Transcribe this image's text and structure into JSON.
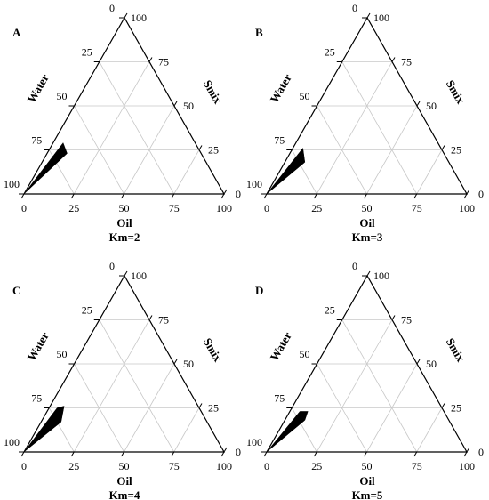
{
  "chart_data": [
    {
      "type": "ternary",
      "annotation": "A",
      "title": "Km=2",
      "axes": {
        "bottom": "Oil",
        "left": "Water",
        "right": "Smix"
      },
      "lim": [
        0,
        100
      ],
      "ticks": [
        0,
        25,
        50,
        75,
        100
      ],
      "grid": true,
      "color": "#000000",
      "region": {
        "oil": [
          0,
          5,
          10
        ],
        "smix": [
          0,
          29,
          23
        ]
      }
    },
    {
      "type": "ternary",
      "annotation": "B",
      "title": "Km=3",
      "axes": {
        "bottom": "Oil",
        "left": "Water",
        "right": "Smix"
      },
      "lim": [
        0,
        100
      ],
      "ticks": [
        0,
        25,
        50,
        75,
        100
      ],
      "grid": true,
      "color": "#000000",
      "region": {
        "oil": [
          0,
          5,
          10
        ],
        "smix": [
          0,
          26,
          18
        ]
      }
    },
    {
      "type": "ternary",
      "annotation": "C",
      "title": "Km=4",
      "axes": {
        "bottom": "Oil",
        "left": "Water",
        "right": "Smix"
      },
      "lim": [
        0,
        100
      ],
      "ticks": [
        0,
        25,
        50,
        75,
        100
      ],
      "grid": true,
      "color": "#000000",
      "region": {
        "oil": [
          0,
          4,
          7,
          10
        ],
        "smix": [
          0,
          25,
          26,
          17
        ]
      }
    },
    {
      "type": "ternary",
      "annotation": "D",
      "title": "Km=5",
      "axes": {
        "bottom": "Oil",
        "left": "Water",
        "right": "Smix"
      },
      "lim": [
        0,
        100
      ],
      "ticks": [
        0,
        25,
        50,
        75,
        100
      ],
      "grid": true,
      "color": "#000000",
      "region": {
        "oil": [
          0,
          5,
          9,
          10
        ],
        "smix": [
          0,
          23,
          23,
          18
        ]
      }
    }
  ]
}
